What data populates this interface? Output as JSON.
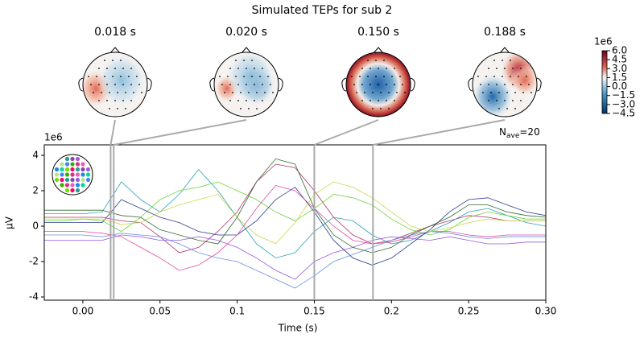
{
  "chart_data": {
    "type": "line",
    "title": "Simulated TEPs for sub 2",
    "xlabel": "Time (s)",
    "ylabel": "µV",
    "y_offset_label": "1e6",
    "nave": {
      "main": "N",
      "sub": "ave",
      "rest": "=20"
    },
    "x": [
      -0.025,
      -0.0125,
      0,
      0.0125,
      0.025,
      0.0375,
      0.05,
      0.0625,
      0.075,
      0.0875,
      0.1,
      0.1125,
      0.125,
      0.1375,
      0.15,
      0.1625,
      0.175,
      0.1875,
      0.2,
      0.2125,
      0.225,
      0.2375,
      0.25,
      0.2625,
      0.275,
      0.2875,
      0.3
    ],
    "series": [
      {
        "color": "#b0306a",
        "values": [
          0.5,
          0.5,
          0.5,
          0.5,
          0.3,
          0.2,
          -0.6,
          -1.5,
          -1.2,
          -0.3,
          0.8,
          2.5,
          3.5,
          3.3,
          2,
          0.5,
          -0.5,
          -1,
          -0.8,
          -0.4,
          0,
          0.3,
          0.6,
          0.5,
          0.3,
          0.3,
          0.3
        ]
      },
      {
        "color": "#2aa1b5",
        "values": [
          0.7,
          0.7,
          0.7,
          0.8,
          2.5,
          1.5,
          0.8,
          1.8,
          3.2,
          2,
          0.5,
          -1,
          -1.8,
          -1.5,
          -0.3,
          0.5,
          0.3,
          -0.5,
          -1,
          -0.8,
          -0.3,
          0.2,
          0.8,
          1,
          0.6,
          0.2,
          0.0
        ]
      },
      {
        "color": "#6bd43a",
        "values": [
          0.3,
          0.3,
          0.4,
          0.3,
          -0.3,
          0.5,
          1.5,
          2,
          2.2,
          2.5,
          2,
          1.5,
          0.8,
          0.3,
          1,
          1.8,
          1.6,
          1.2,
          0.4,
          -0.2,
          -0.5,
          -0.2,
          0.5,
          0.8,
          0.6,
          0.4,
          0.4
        ]
      },
      {
        "color": "#9b59e0",
        "values": [
          -0.8,
          -0.8,
          -0.8,
          -0.8,
          -0.5,
          -0.6,
          -0.8,
          -0.8,
          -0.6,
          -0.8,
          -1.2,
          -1.8,
          -2.5,
          -3,
          -2,
          -1.5,
          -1.2,
          -0.8,
          -0.6,
          -0.7,
          -0.8,
          -0.6,
          -0.8,
          -1,
          -1,
          -0.9,
          -0.9
        ]
      },
      {
        "color": "#2b3d8f",
        "values": [
          0.2,
          0.2,
          0.2,
          0.2,
          1.5,
          1,
          0.5,
          0.2,
          -0.3,
          -0.5,
          -0.5,
          0.3,
          1.5,
          2.2,
          0.8,
          -0.8,
          -1.8,
          -2.2,
          -1.8,
          -1,
          -0.2,
          0.8,
          1.5,
          1.6,
          1.2,
          0.8,
          0.6
        ]
      },
      {
        "color": "#e04a9c",
        "values": [
          -0.3,
          -0.3,
          -0.3,
          -0.4,
          -0.6,
          -1.2,
          -1.8,
          -2.5,
          -2.2,
          -1.5,
          -0.5,
          1,
          2.3,
          2,
          1,
          0,
          -0.8,
          -1,
          -0.9,
          -0.6,
          -0.3,
          -0.3,
          -0.5,
          -0.6,
          -0.5,
          -0.5,
          -0.5
        ]
      },
      {
        "color": "#6a8ee8",
        "values": [
          -0.5,
          -0.5,
          -0.5,
          -0.6,
          -0.4,
          -0.5,
          -0.6,
          -1,
          -1.5,
          -1.8,
          -2,
          -2.5,
          -3,
          -3.5,
          -2.8,
          -2,
          -1.6,
          -1.2,
          -0.8,
          -0.5,
          -0.3,
          -0.4,
          -0.6,
          -0.7,
          -0.6,
          -0.6,
          -0.6
        ]
      },
      {
        "color": "#c8d84a",
        "values": [
          0.4,
          0.4,
          0.4,
          0.4,
          0.1,
          0.2,
          0.8,
          1.2,
          1.5,
          1.8,
          0.5,
          -0.5,
          -1,
          0.2,
          1.8,
          2.5,
          2.2,
          1.6,
          0.8,
          0,
          -0.3,
          -0.1,
          0.2,
          0.4,
          0.3,
          0.3,
          0.3
        ]
      },
      {
        "color": "#2f6b2f",
        "values": [
          0.9,
          0.9,
          0.9,
          0.9,
          0.6,
          0.5,
          -0.2,
          -0.5,
          -0.8,
          -1,
          0.5,
          2.5,
          3.8,
          3.5,
          1,
          -0.5,
          -1.2,
          -1.5,
          -1.2,
          -0.5,
          0,
          0.5,
          1.2,
          1.2,
          0.8,
          0.6,
          0.5
        ]
      }
    ],
    "xlim": [
      -0.025,
      0.3
    ],
    "xticks": [
      {
        "value": 0,
        "label": "0.00"
      },
      0.05,
      0.1,
      0.15,
      0.2,
      0.25,
      {
        "value": 0.3,
        "label": "0.30"
      }
    ],
    "ylim": [
      -4.18,
      4.59
    ],
    "yticks": [
      -4,
      -2,
      0,
      2,
      4
    ],
    "topomaps": [
      {
        "time": 0.018,
        "title": "0.018 s"
      },
      {
        "time": 0.02,
        "title": "0.020 s"
      },
      {
        "time": 0.15,
        "title": "0.150 s"
      },
      {
        "time": 0.188,
        "title": "0.188 s"
      }
    ],
    "colorbar": {
      "label": "1e6",
      "lim": [
        -4.5,
        6.0
      ],
      "ticks": [
        {
          "value": 6,
          "label": "6.0"
        },
        4.5,
        {
          "value": 3,
          "label": "3.0"
        },
        1.5,
        {
          "value": 0,
          "label": "0.0"
        },
        {
          "value": -1.5,
          "label": "−1.5"
        },
        {
          "value": -3,
          "label": "−3.0"
        },
        {
          "value": -4.5,
          "label": "−4.5"
        }
      ]
    }
  }
}
